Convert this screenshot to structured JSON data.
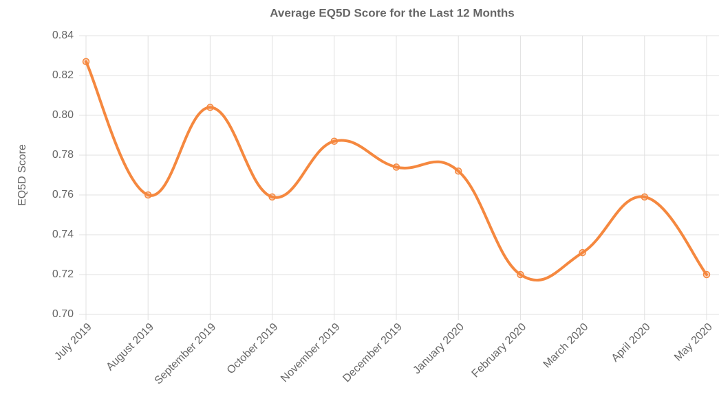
{
  "chart_data": {
    "type": "line",
    "title": "Average EQ5D Score for the Last 12 Months",
    "y_label": "EQ5D Score",
    "categories": [
      "July 2019",
      "August 2019",
      "September 2019",
      "October 2019",
      "November 2019",
      "December 2019",
      "January 2020",
      "February 2020",
      "March 2020",
      "April 2020",
      "May 2020"
    ],
    "series": [
      {
        "name": "EQ5D Score",
        "color": "#f5883f",
        "values": [
          0.827,
          0.76,
          0.804,
          0.759,
          0.787,
          0.774,
          0.772,
          0.72,
          0.731,
          0.759,
          0.72
        ]
      }
    ],
    "ylim": [
      0.7,
      0.84
    ],
    "yticks": [
      0.84,
      0.82,
      {
        "value": 0.8,
        "label": "0.80"
      },
      0.78,
      0.76,
      0.74,
      0.72,
      {
        "value": 0.7,
        "label": "0.70"
      }
    ],
    "grid": true
  }
}
